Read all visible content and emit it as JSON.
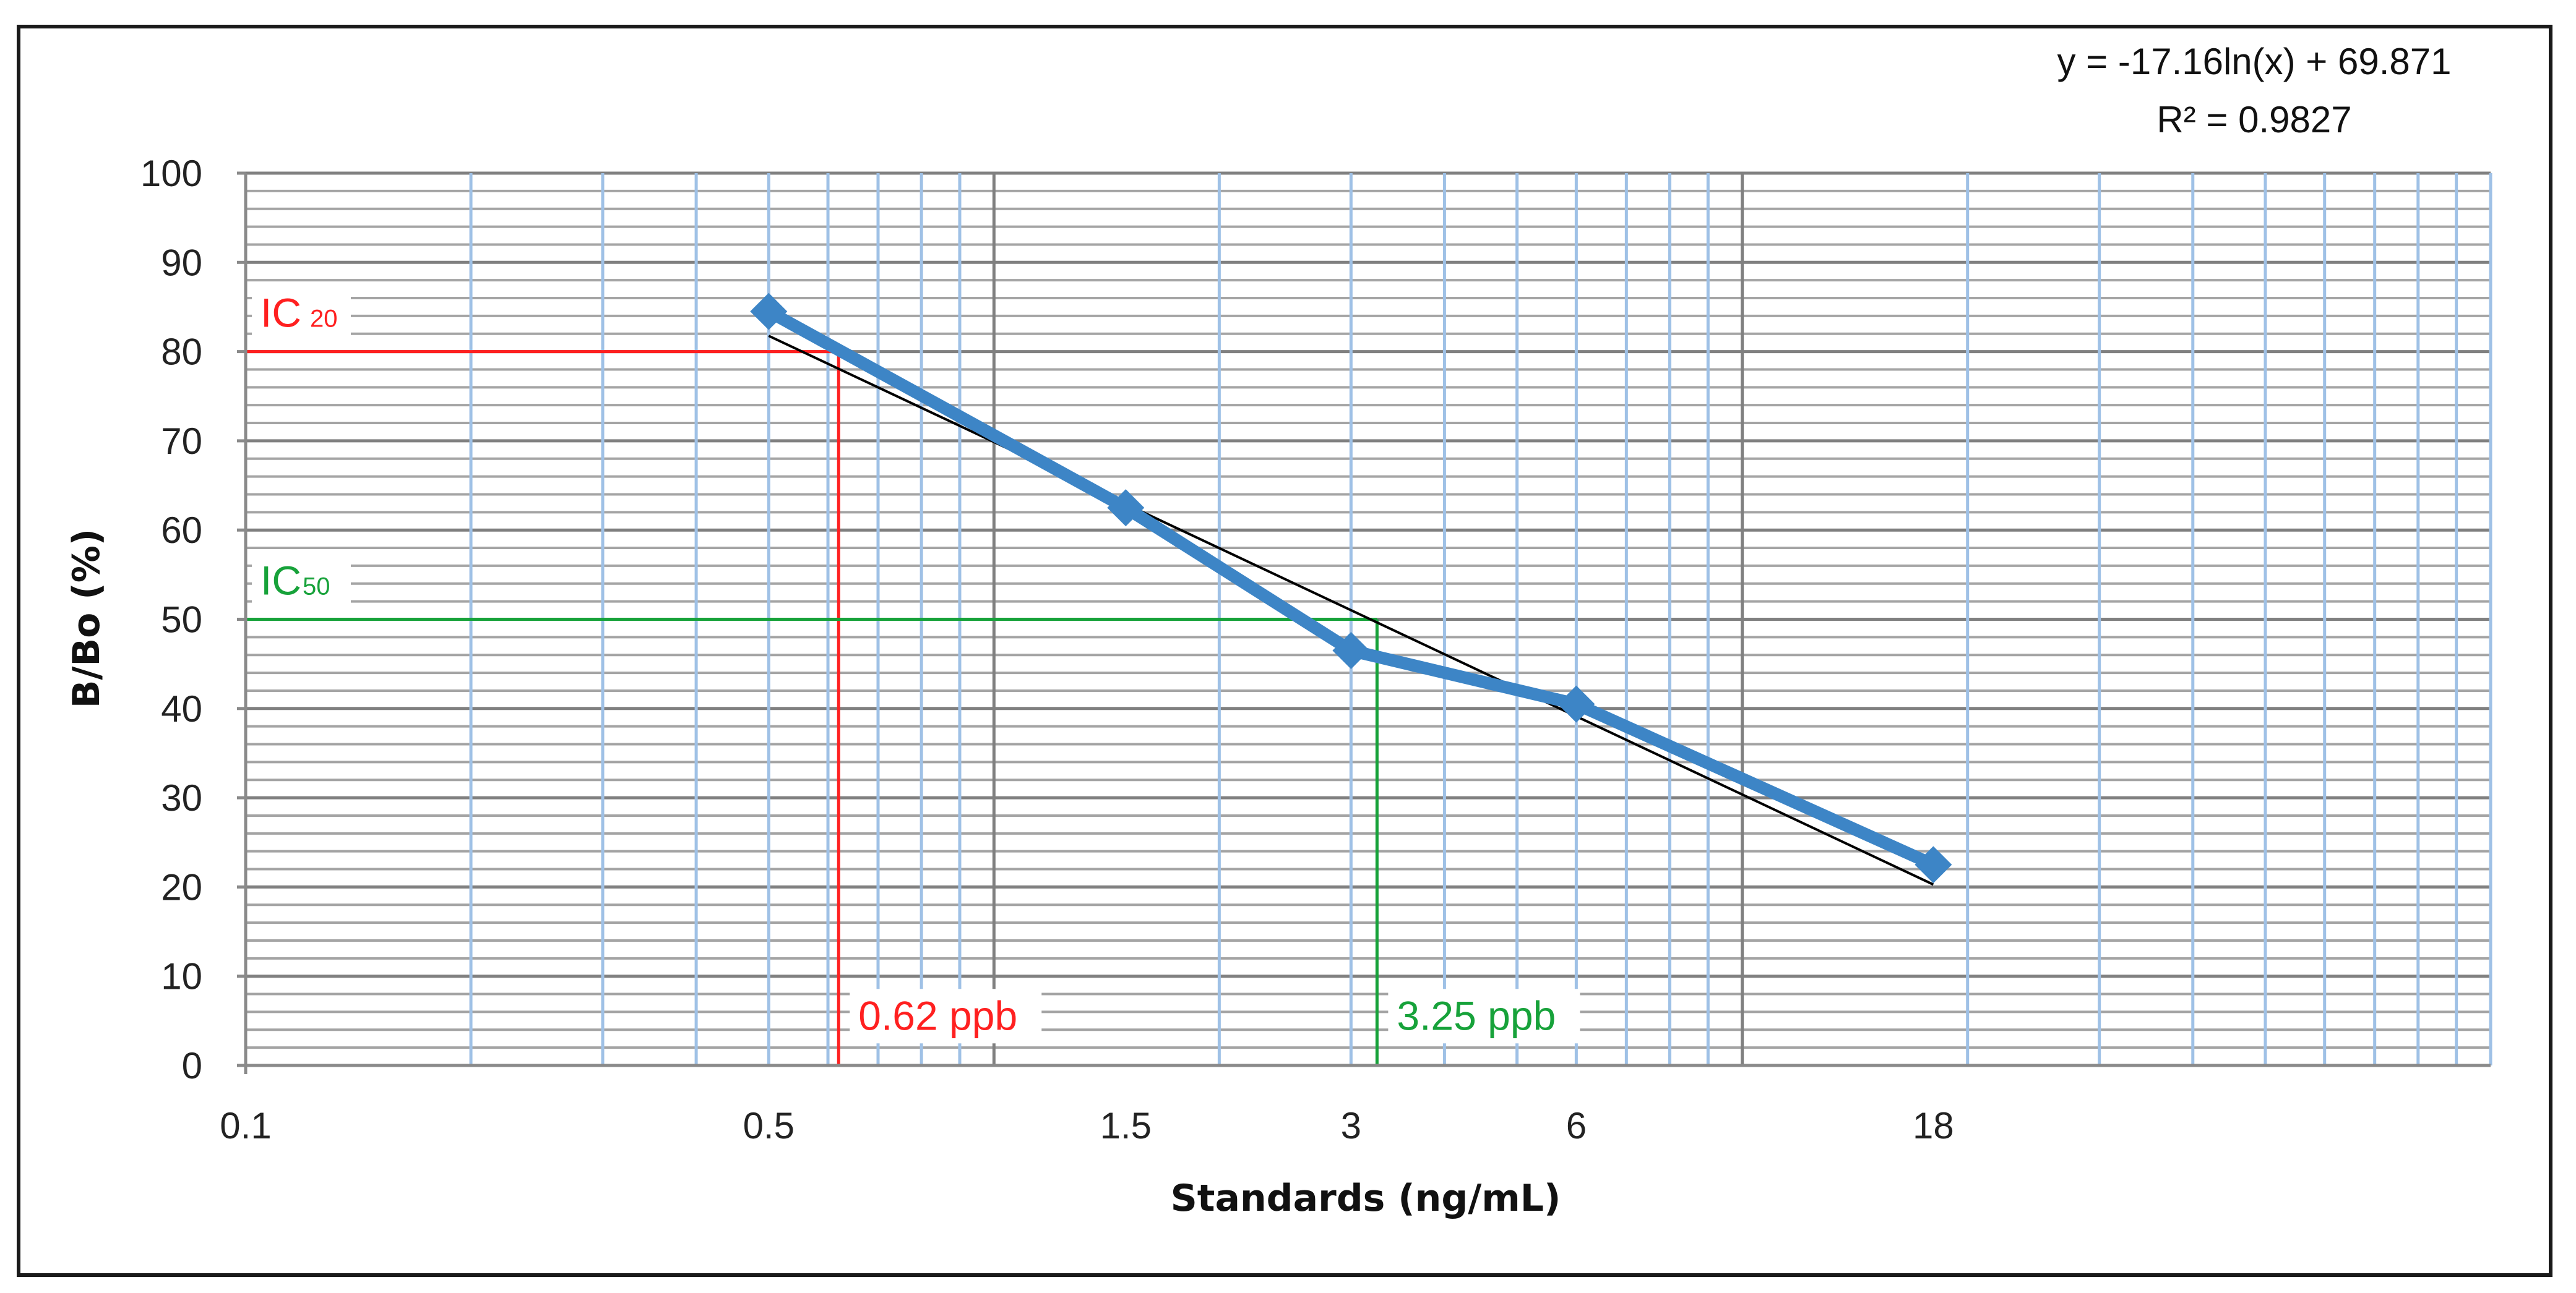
{
  "chart_data": {
    "type": "line",
    "xlabel": "Standards (ng/mL)",
    "ylabel": "B/Bo (%)",
    "x_scale": "log",
    "xlim": [
      0.1,
      100
    ],
    "ylim": [
      0,
      100
    ],
    "y_ticks": [
      0,
      10,
      20,
      30,
      40,
      50,
      60,
      70,
      80,
      90,
      100
    ],
    "x_tick_labels": [
      "0.1",
      "0.5",
      "1.5",
      "3",
      "6",
      "18"
    ],
    "grid": true,
    "colors": {
      "series": "#3d85c6",
      "trendline": "#000000",
      "ic20": "#ff2020",
      "ic50": "#17a23a",
      "major_grid": "#808080",
      "minor_grid": "#a4a4a4",
      "vertical_grid": "#9fc1e6"
    },
    "series": [
      {
        "x": [
          0.5,
          1.5,
          3,
          6,
          18
        ],
        "y": [
          84.5,
          62.5,
          46.5,
          40.5,
          22.5
        ]
      }
    ],
    "trendline": {
      "equation": "y = -17.16ln(x) + 69.871",
      "r_squared": "R² = 0.9827",
      "slope": -17.16,
      "intercept": 69.871,
      "x_range": [
        0.5,
        18
      ]
    },
    "annotations": {
      "ic20": {
        "label_main": "IC",
        "label_sub": "20",
        "y": 80,
        "x": 0.62,
        "value_label": "0.62 ppb"
      },
      "ic50": {
        "label_main": "IC",
        "label_sub": "50",
        "y": 50,
        "x": 3.25,
        "value_label": "3.25 ppb"
      }
    }
  }
}
